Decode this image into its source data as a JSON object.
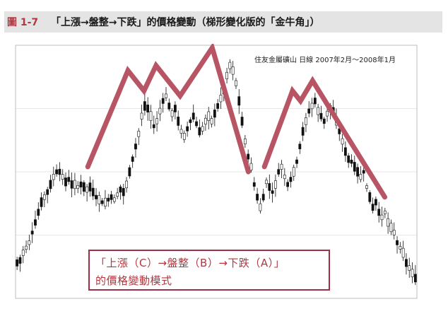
{
  "header": {
    "figure_number": "圖 1-7",
    "title": "「上漲→盤整→下跌」的價格變動（梯形變化版的「金牛角」）"
  },
  "chart_data": {
    "type": "candlestick",
    "title": "住友金屬礦山 日線 2007年2月～2008年1月",
    "annotation": {
      "line1": "「上漲（C）→盤整（B）→下跌（A）」",
      "line2": "的價格變動模式"
    },
    "colors": {
      "trend_line": "#b85565",
      "candle": "#111111",
      "grid": "#cfcfcf",
      "annotation_text": "#b0383f",
      "annotation_border": "#9b2f4b"
    },
    "trend_lines": [
      {
        "name": "first-peak-pattern",
        "points": [
          [
            0.18,
            0.48
          ],
          [
            0.28,
            0.1
          ],
          [
            0.32,
            0.18
          ],
          [
            0.35,
            0.08
          ],
          [
            0.41,
            0.2
          ],
          [
            0.49,
            0.01
          ],
          [
            0.58,
            0.5
          ]
        ]
      },
      {
        "name": "second-peak-pattern",
        "points": [
          [
            0.62,
            0.48
          ],
          [
            0.69,
            0.18
          ],
          [
            0.71,
            0.22
          ],
          [
            0.74,
            0.14
          ],
          [
            0.92,
            0.6
          ]
        ]
      }
    ],
    "series": [
      {
        "values": [
          0.86,
          0.85,
          0.82,
          0.8,
          0.78,
          0.74,
          0.7,
          0.66,
          0.62,
          0.6,
          0.58,
          0.55,
          0.52,
          0.5,
          0.5,
          0.52,
          0.54,
          0.53,
          0.55,
          0.55,
          0.56,
          0.55,
          0.56,
          0.57,
          0.56,
          0.58,
          0.6,
          0.61,
          0.62,
          0.62,
          0.61,
          0.6,
          0.61,
          0.59,
          0.57,
          0.58,
          0.55,
          0.5,
          0.45,
          0.4,
          0.35,
          0.28,
          0.24,
          0.25,
          0.28,
          0.32,
          0.3,
          0.26,
          0.22,
          0.2,
          0.24,
          0.27,
          0.25,
          0.3,
          0.34,
          0.36,
          0.33,
          0.3,
          0.28,
          0.31,
          0.34,
          0.33,
          0.3,
          0.28,
          0.3,
          0.27,
          0.24,
          0.21,
          0.18,
          0.12,
          0.08,
          0.1,
          0.15,
          0.22,
          0.3,
          0.38,
          0.44,
          0.48,
          0.55,
          0.6,
          0.64,
          0.6,
          0.54,
          0.56,
          0.58,
          0.55,
          0.5,
          0.48,
          0.52,
          0.55,
          0.53,
          0.5,
          0.46,
          0.4,
          0.34,
          0.3,
          0.26,
          0.24,
          0.22,
          0.26,
          0.28,
          0.3,
          0.27,
          0.25,
          0.26,
          0.3,
          0.34,
          0.38,
          0.42,
          0.45,
          0.46,
          0.48,
          0.5,
          0.52,
          0.5,
          0.56,
          0.6,
          0.64,
          0.62,
          0.66,
          0.68,
          0.66,
          0.7,
          0.72,
          0.74,
          0.78,
          0.8,
          0.82,
          0.86,
          0.88,
          0.9,
          0.92
        ]
      }
    ],
    "xlim": [
      0,
      1
    ],
    "ylim": [
      0,
      1
    ],
    "grid": "on"
  }
}
